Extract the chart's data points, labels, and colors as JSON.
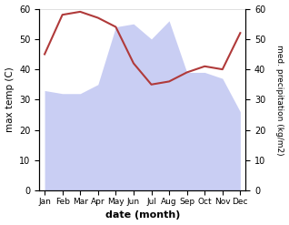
{
  "months": [
    "Jan",
    "Feb",
    "Mar",
    "Apr",
    "May",
    "Jun",
    "Jul",
    "Aug",
    "Sep",
    "Oct",
    "Nov",
    "Dec"
  ],
  "month_indices": [
    0,
    1,
    2,
    3,
    4,
    5,
    6,
    7,
    8,
    9,
    10,
    11
  ],
  "temperature": [
    45,
    58,
    59,
    57,
    54,
    42,
    35,
    36,
    39,
    41,
    40,
    52
  ],
  "precipitation": [
    33,
    32,
    32,
    35,
    54,
    55,
    50,
    56,
    39,
    39,
    37,
    26
  ],
  "temp_color": "#b03a3a",
  "precip_fill_color": "#b8bef0",
  "precip_fill_alpha": 0.75,
  "temp_ylim": [
    0,
    60
  ],
  "precip_ylim": [
    0,
    60
  ],
  "temp_yticks": [
    0,
    10,
    20,
    30,
    40,
    50,
    60
  ],
  "precip_yticks": [
    0,
    10,
    20,
    30,
    40,
    50,
    60
  ],
  "xlabel": "date (month)",
  "ylabel_left": "max temp (C)",
  "ylabel_right": "med. precipitation (kg/m2)",
  "background_color": "#ffffff"
}
